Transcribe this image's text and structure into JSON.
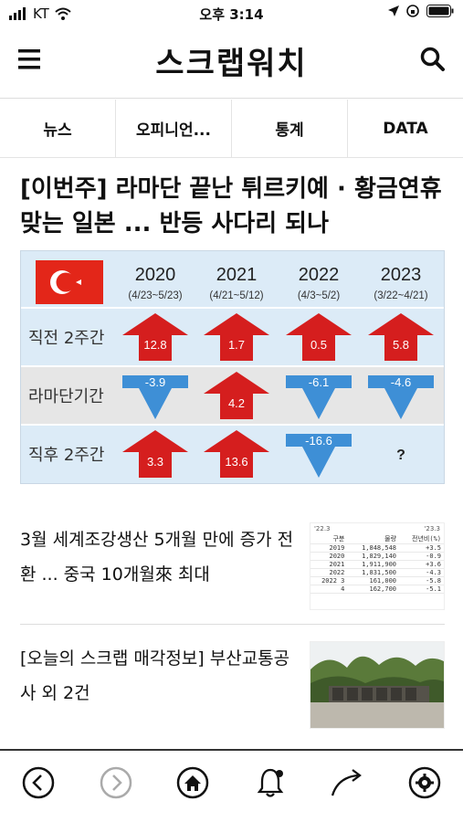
{
  "status_bar": {
    "carrier": "KT",
    "time": "오후 3:14"
  },
  "app": {
    "logo": "스크랩워치"
  },
  "tabs": [
    {
      "label": "뉴스"
    },
    {
      "label": "오피니언..."
    },
    {
      "label": "통계"
    },
    {
      "label": "DATA"
    }
  ],
  "featured": {
    "headline": "[이번주] 라마단 끝난 튀르키예 · 황금연휴 맞는 일본 ... 반등 사다리 되나"
  },
  "chart_data": {
    "type": "table",
    "columns": [
      {
        "year": "2020",
        "period": "(4/23~5/23)"
      },
      {
        "year": "2021",
        "period": "(4/21~5/12)"
      },
      {
        "year": "2022",
        "period": "(4/3~5/2)"
      },
      {
        "year": "2023",
        "period": "(3/22~4/21)"
      }
    ],
    "rows": [
      {
        "label": "직전 2주간",
        "values": [
          "12.8",
          "1.7",
          "0.5",
          "5.8"
        ],
        "directions": [
          "up",
          "up",
          "up",
          "up"
        ]
      },
      {
        "label": "라마단기간",
        "values": [
          "-3.9",
          "4.2",
          "-6.1",
          "-4.6"
        ],
        "directions": [
          "down",
          "up",
          "down",
          "down"
        ]
      },
      {
        "label": "직후 2주간",
        "values": [
          "3.3",
          "13.6",
          "-16.6",
          "?"
        ],
        "directions": [
          "up",
          "up",
          "down",
          "none"
        ]
      }
    ],
    "colors": {
      "up": "#d51e1e",
      "down": "#3e8fd6",
      "row_blue": "#dcebf7",
      "row_gray": "#e6e6e6"
    }
  },
  "articles": [
    {
      "title": "3월 세계조강생산 5개월 만에 증가 전환 ... 중국 10개월來 최대",
      "thumb": {
        "head_left": "'22.3",
        "head_right": "'23.3",
        "columns": [
          "구분",
          "물량",
          "전년비(%)"
        ],
        "rows": [
          [
            "2019",
            "1,848,548",
            "+3.5"
          ],
          [
            "2020",
            "1,829,140",
            "-0.9"
          ],
          [
            "2021",
            "1,911,900",
            "+3.6"
          ],
          [
            "2022",
            "1,831,500",
            "-4.3"
          ],
          [
            "2022 3",
            "161,000",
            "-5.8"
          ],
          [
            "4",
            "162,700",
            "-5.1"
          ]
        ]
      }
    },
    {
      "title": "[오늘의 스크랩 매각정보] 부산교통공사 외 2건"
    }
  ],
  "bottom_nav": [
    {
      "icon": "back-icon"
    },
    {
      "icon": "forward-icon"
    },
    {
      "icon": "home-icon"
    },
    {
      "icon": "bell-icon"
    },
    {
      "icon": "share-icon"
    },
    {
      "icon": "settings-icon"
    }
  ]
}
